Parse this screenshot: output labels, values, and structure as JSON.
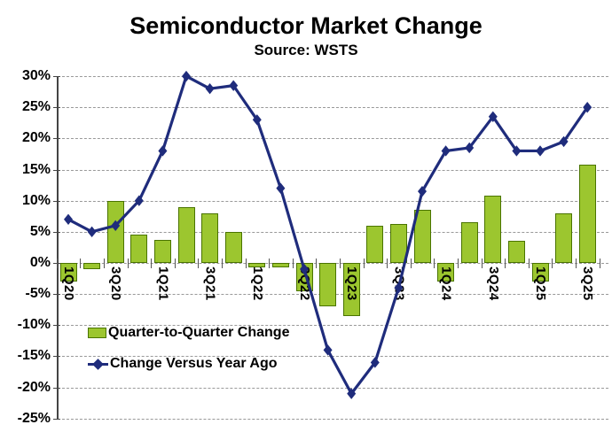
{
  "chart_data": {
    "type": "combo",
    "title": "Semiconductor Market Change",
    "subtitle": "Source: WSTS",
    "categories": [
      "1Q20",
      "2Q20",
      "3Q20",
      "4Q20",
      "1Q21",
      "2Q21",
      "3Q21",
      "4Q21",
      "1Q22",
      "2Q22",
      "3Q22",
      "4Q22",
      "1Q23",
      "2Q23",
      "3Q23",
      "4Q23",
      "1Q24",
      "2Q24",
      "3Q24",
      "4Q24",
      "1Q25",
      "2Q25",
      "3Q25"
    ],
    "series": [
      {
        "name": "Quarter-to-Quarter Change",
        "type": "bar",
        "values": [
          -3,
          -1,
          10,
          4.5,
          3.7,
          9,
          8,
          5,
          -0.7,
          -0.7,
          -4.5,
          -7,
          -8.5,
          6,
          6.2,
          8.5,
          -3,
          6.5,
          10.8,
          3.6,
          -3,
          8,
          15.8
        ]
      },
      {
        "name": "Change Versus Year Ago",
        "type": "line",
        "values": [
          7,
          5,
          6,
          10,
          18,
          30,
          28,
          28.5,
          23,
          12,
          -1,
          -14,
          -21,
          -16,
          -4,
          11.5,
          18,
          18.5,
          23.5,
          18,
          18,
          19.5,
          25
        ]
      }
    ],
    "x_tick_labels": [
      "1Q20",
      "3Q20",
      "1Q21",
      "3Q21",
      "1Q22",
      "3Q22",
      "1Q23",
      "3Q23",
      "1Q24",
      "3Q24",
      "1Q25",
      "3Q25"
    ],
    "y_tick_labels": [
      "30%",
      "25%",
      "20%",
      "15%",
      "10%",
      "5%",
      "0%",
      "-5%",
      "-10%",
      "-15%",
      "-20%",
      "-25%"
    ],
    "ylim": [
      -25,
      30
    ],
    "y_step": 5,
    "grid": true,
    "legend_position": "inside-lower-left"
  },
  "colors": {
    "bar_fill": "#9CC62F",
    "bar_border": "#4A7400",
    "line": "#1F2C7C",
    "grid": "#999999",
    "axis": "#444444",
    "text": "#000000",
    "background": "#FFFFFF"
  }
}
